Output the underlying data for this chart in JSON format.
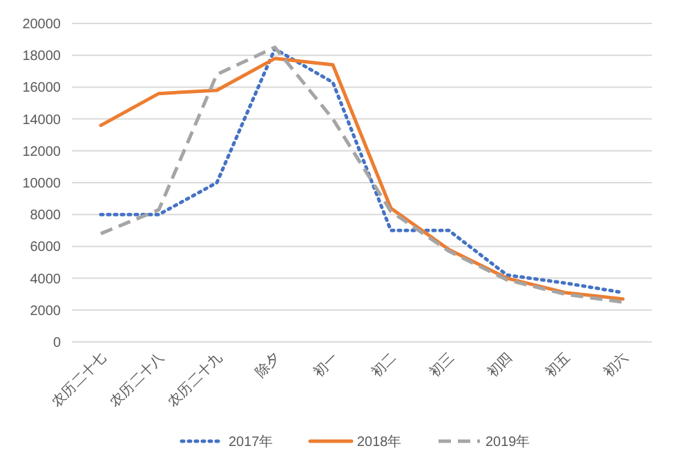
{
  "chart_data": {
    "type": "line",
    "categories": [
      "农历二十七",
      "农历二十八",
      "农历二十九",
      "除夕",
      "初一",
      "初二",
      "初三",
      "初四",
      "初五",
      "初六"
    ],
    "series": [
      {
        "name": "2017年",
        "color": "#4472c4",
        "line_style": "dotted",
        "values": [
          8000,
          8000,
          10000,
          18400,
          16300,
          7000,
          7000,
          4200,
          3700,
          3100
        ]
      },
      {
        "name": "2018年",
        "color": "#ed7d31",
        "line_style": "solid",
        "values": [
          13600,
          15600,
          15800,
          17800,
          17400,
          8400,
          5800,
          4000,
          3100,
          2700
        ]
      },
      {
        "name": "2019年",
        "color": "#a5a5a5",
        "line_style": "dashed",
        "values": [
          6800,
          8300,
          16800,
          18500,
          14000,
          8200,
          5700,
          3900,
          3000,
          2500
        ]
      }
    ],
    "ylim": [
      0,
      20000
    ],
    "yticks": [
      0,
      2000,
      4000,
      6000,
      8000,
      10000,
      12000,
      14000,
      16000,
      18000,
      20000
    ],
    "grid": "y",
    "legend": "bottom"
  }
}
